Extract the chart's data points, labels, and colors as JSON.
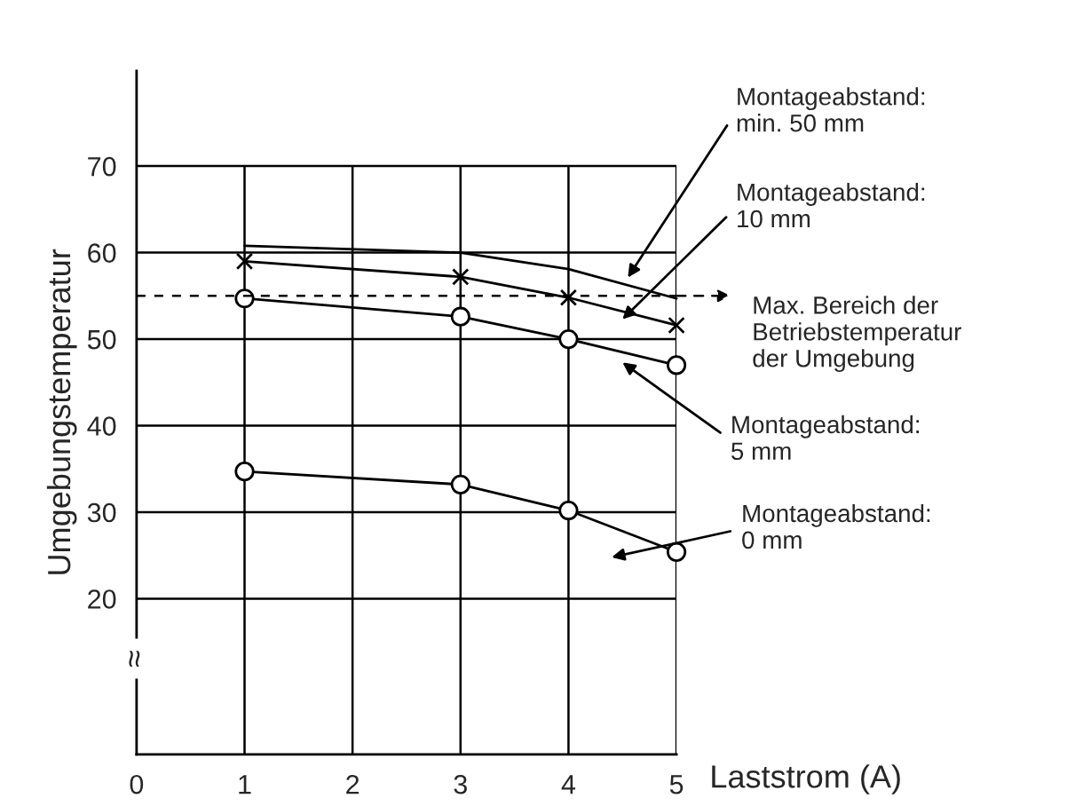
{
  "chart_data": {
    "type": "line",
    "xlabel": "Laststrom (A)",
    "ylabel": "Umgebungstemperatur",
    "x": [
      1,
      3,
      4,
      5
    ],
    "xlim": [
      0,
      5
    ],
    "xticks": [
      0,
      1,
      2,
      3,
      4,
      5
    ],
    "ylim": [
      2,
      81
    ],
    "yticks": [
      20,
      30,
      40,
      50,
      60,
      70
    ],
    "grid": true,
    "legend": "right",
    "series": [
      {
        "name": "Montageabstand:\nmin. 50 mm",
        "color": "#000000",
        "marker": "none",
        "values": [
          60.8,
          60.0,
          58.1,
          54.7
        ]
      },
      {
        "name": "Montageabstand:\n10 mm",
        "color": "#000000",
        "marker": "cross",
        "values": [
          59.0,
          57.2,
          54.8,
          51.6
        ]
      },
      {
        "name": "Montageabstand:\n5 mm",
        "color": "#000000",
        "marker": "circle",
        "values": [
          54.7,
          52.6,
          50.0,
          47.0
        ]
      },
      {
        "name": "Montageabstand:\n0 mm",
        "color": "#000000",
        "marker": "circle",
        "values": [
          34.7,
          33.2,
          30.2,
          25.4
        ]
      }
    ],
    "ref_lines": [
      {
        "axis": "y",
        "value": 55,
        "label": "Max. Bereich der\nBetriebstemperatur\nder Umgebung",
        "line_style": "dashed",
        "color": "#000000"
      }
    ],
    "annotations": [
      "≈"
    ]
  }
}
